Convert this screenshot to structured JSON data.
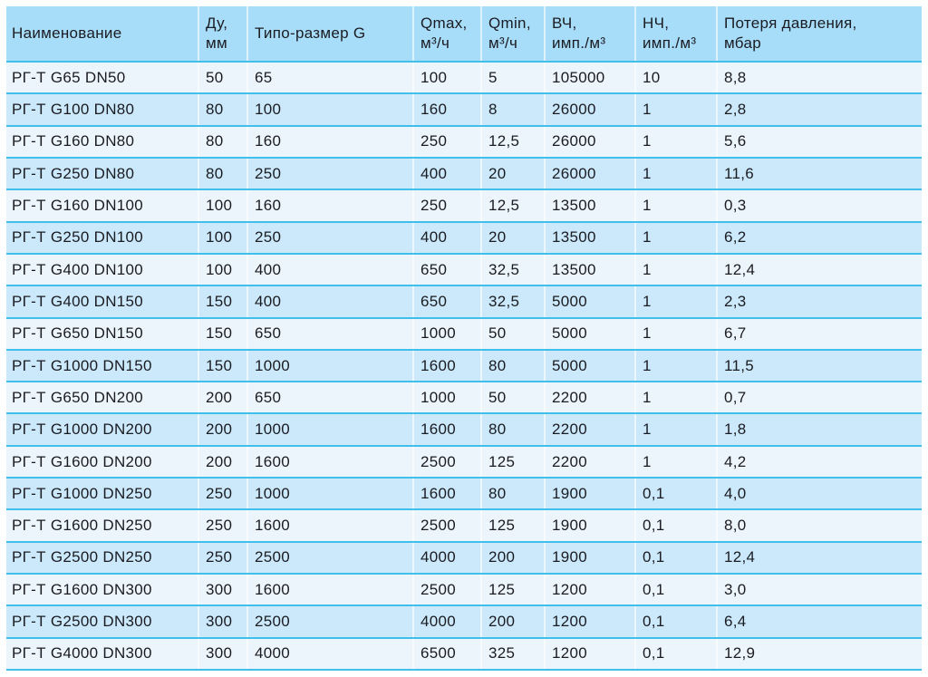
{
  "colors": {
    "header-bg": "#a7ddf8",
    "row-odd": "#edf5fc",
    "row-even": "#cbe9fa",
    "separator": "#41bfeb",
    "text": "#1b1b22"
  },
  "table": {
    "columns": [
      {
        "key": "name",
        "label": "Наименование"
      },
      {
        "key": "du-mm",
        "label": "Ду,\nмм"
      },
      {
        "key": "size-g",
        "label": "Типо-размер G"
      },
      {
        "key": "qmax",
        "label": "Qmax,\nм³/ч"
      },
      {
        "key": "qmin",
        "label": "Qmin,\nм³/ч"
      },
      {
        "key": "vch",
        "label": "ВЧ,\nимп./м³"
      },
      {
        "key": "nch",
        "label": "НЧ,\nимп./м³"
      },
      {
        "key": "pressure-loss",
        "label": "Потеря давления,\nмбар"
      }
    ],
    "rows": [
      [
        "РГ-Т G65 DN50",
        "50",
        "65",
        "100",
        "5",
        "105000",
        "10",
        "8,8"
      ],
      [
        "РГ-Т G100 DN80",
        "80",
        "100",
        "160",
        "8",
        "26000",
        "1",
        "2,8"
      ],
      [
        "РГ-Т G160 DN80",
        "80",
        "160",
        "250",
        "12,5",
        "26000",
        "1",
        "5,6"
      ],
      [
        "РГ-Т G250 DN80",
        "80",
        "250",
        "400",
        "20",
        "26000",
        "1",
        "11,6"
      ],
      [
        "РГ-Т G160 DN100",
        "100",
        "160",
        "250",
        "12,5",
        "13500",
        "1",
        "0,3"
      ],
      [
        "РГ-Т G250 DN100",
        "100",
        "250",
        "400",
        "20",
        "13500",
        "1",
        "6,2"
      ],
      [
        "РГ-Т G400 DN100",
        "100",
        "400",
        "650",
        "32,5",
        "13500",
        "1",
        "12,4"
      ],
      [
        "РГ-Т G400 DN150",
        "150",
        "400",
        "650",
        "32,5",
        "5000",
        "1",
        "2,3"
      ],
      [
        "РГ-Т G650 DN150",
        "150",
        "650",
        "1000",
        "50",
        "5000",
        "1",
        "6,7"
      ],
      [
        "РГ-Т G1000 DN150",
        "150",
        "1000",
        "1600",
        "80",
        "5000",
        "1",
        "11,5"
      ],
      [
        "РГ-Т G650 DN200",
        "200",
        "650",
        "1000",
        "50",
        "2200",
        "1",
        "0,7"
      ],
      [
        "РГ-Т G1000 DN200",
        "200",
        "1000",
        "1600",
        "80",
        "2200",
        "1",
        "1,8"
      ],
      [
        "РГ-Т G1600 DN200",
        "200",
        "1600",
        "2500",
        "125",
        "2200",
        "1",
        "4,2"
      ],
      [
        "РГ-Т G1000 DN250",
        "250",
        "1000",
        "1600",
        "80",
        "1900",
        "0,1",
        "4,0"
      ],
      [
        "РГ-Т G1600 DN250",
        "250",
        "1600",
        "2500",
        "125",
        "1900",
        "0,1",
        "8,0"
      ],
      [
        "РГ-Т G2500 DN250",
        "250",
        "2500",
        "4000",
        "200",
        "1900",
        "0,1",
        "12,4"
      ],
      [
        "РГ-Т G1600 DN300",
        "300",
        "1600",
        "2500",
        "125",
        "1200",
        "0,1",
        "3,0"
      ],
      [
        "РГ-Т G2500 DN300",
        "300",
        "2500",
        "4000",
        "200",
        "1200",
        "0,1",
        "6,4"
      ],
      [
        "РГ-Т G4000 DN300",
        "300",
        "4000",
        "6500",
        "325",
        "1200",
        "0,1",
        "12,9"
      ]
    ]
  }
}
